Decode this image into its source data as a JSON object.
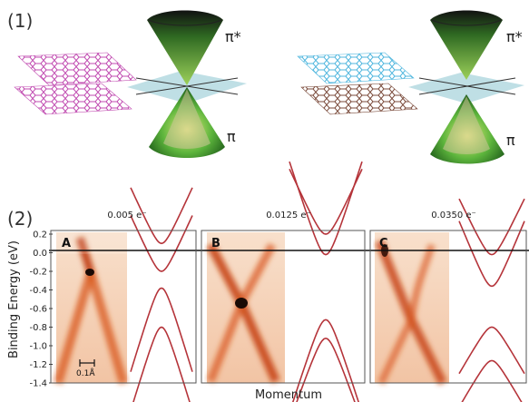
{
  "part1": {
    "label": "(1)",
    "left_panel": {
      "upper_band_label": "π*",
      "lower_band_label": "π"
    },
    "right_panel": {
      "upper_band_label": "π*",
      "lower_band_label": "π"
    }
  },
  "part2": {
    "label": "(2)",
    "ylabel": "Binding Energy (eV)",
    "xlabel": "Momentum",
    "yticks": [
      "0.2",
      "0.0",
      "-0.2",
      "-0.4",
      "-0.6",
      "-0.8",
      "-1.0",
      "-1.2",
      "-1.4"
    ],
    "scale_bar": "0.1Å",
    "panels": [
      {
        "letter": "A",
        "doping": "0.005 e⁻"
      },
      {
        "letter": "B",
        "doping": "0.0125 e⁻"
      },
      {
        "letter": "C",
        "doping": "0.0350 e⁻"
      }
    ]
  },
  "colors": {
    "band_line": "#b5343a",
    "arpes_bg": "#f6d0b8",
    "arpes_intensity": "#c44a12",
    "cone_green": "#4fae3a",
    "plane": "#a9d4dc",
    "lattice_magenta": "#c04ab0",
    "lattice_cyan": "#4fb6de",
    "lattice_brown": "#7a4a3a"
  }
}
